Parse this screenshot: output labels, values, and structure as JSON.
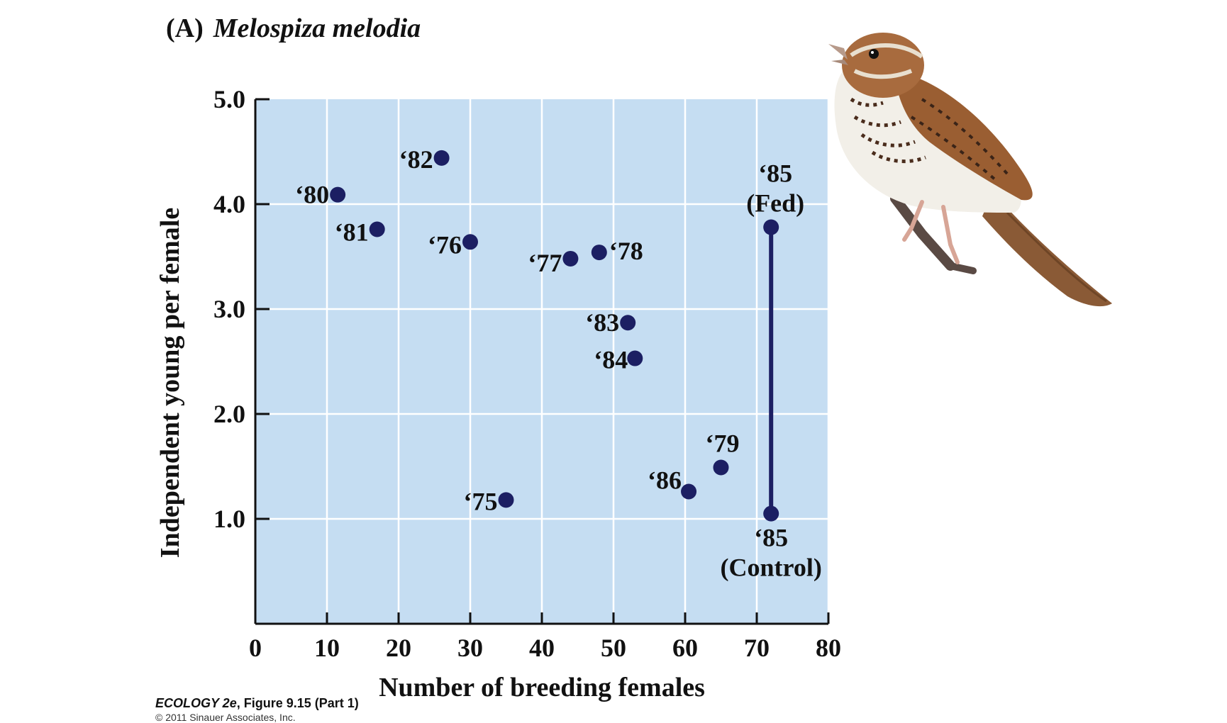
{
  "figure": {
    "panel_label": "(A)",
    "species": "Melospiza melodia",
    "footer_book": "ECOLOGY 2e",
    "footer_rest": ", Figure 9.15 (Part 1)",
    "copyright": "© 2011 Sinauer Associates, Inc."
  },
  "chart_data": {
    "type": "scatter",
    "xlabel": "Number of breeding females",
    "ylabel": "Independent young per female",
    "xlim": [
      0,
      80
    ],
    "ylim": [
      0,
      5.0
    ],
    "xticks": [
      0,
      10,
      20,
      30,
      40,
      50,
      60,
      70,
      80
    ],
    "yticks": [
      1.0,
      2.0,
      3.0,
      4.0,
      5.0
    ],
    "ytick_labels": [
      "1.0",
      "2.0",
      "3.0",
      "4.0",
      "5.0"
    ],
    "grid": true,
    "points": [
      {
        "x": 11.5,
        "y": 4.09,
        "label": "‘80"
      },
      {
        "x": 26,
        "y": 4.44,
        "label": "‘82"
      },
      {
        "x": 17,
        "y": 3.76,
        "label": "‘81"
      },
      {
        "x": 30,
        "y": 3.64,
        "label": "‘76"
      },
      {
        "x": 44,
        "y": 3.48,
        "label": "‘77"
      },
      {
        "x": 48,
        "y": 3.54,
        "label": "‘78"
      },
      {
        "x": 52,
        "y": 2.87,
        "label": "‘83"
      },
      {
        "x": 53,
        "y": 2.53,
        "label": "‘84"
      },
      {
        "x": 35,
        "y": 1.18,
        "label": "‘75"
      },
      {
        "x": 60.5,
        "y": 1.26,
        "label": "‘86"
      },
      {
        "x": 65,
        "y": 1.49,
        "label": "‘79"
      },
      {
        "x": 72,
        "y": 3.78,
        "label": "‘85",
        "sublabel": "(Fed)"
      },
      {
        "x": 72,
        "y": 1.05,
        "label": "‘85",
        "sublabel": "(Control)"
      }
    ],
    "connectors": [
      {
        "x": 72,
        "y_from": 1.05,
        "y_to": 3.78
      }
    ],
    "colors": {
      "plot_bg": "#c5ddf2",
      "grid": "#ffffff",
      "point": "#1c1f63",
      "axis": "#111111"
    }
  }
}
